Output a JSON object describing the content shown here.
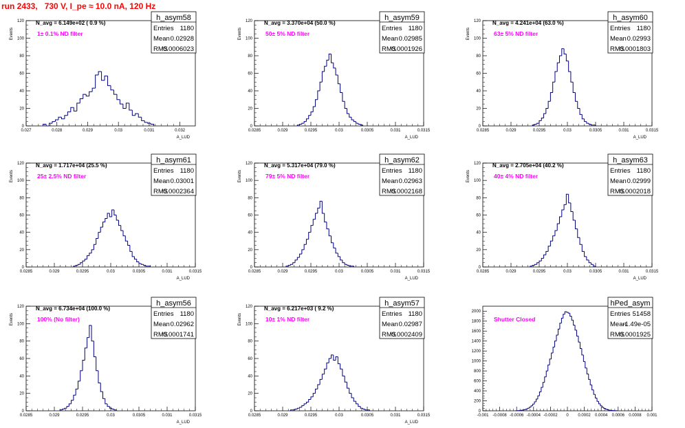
{
  "run_title": "run 2433,   730 V, I_pe ≈ 10.0 nA, 120 Hz",
  "stats_labels": {
    "entries": "Entries",
    "mean": "Mean",
    "rms": "RMS"
  },
  "colors": {
    "title": "#ff0000",
    "annotation": "#ff00ff",
    "histogram": "#000080",
    "frame": "#000000"
  },
  "chart_data": [
    {
      "type": "bar",
      "name": "h_asym58",
      "navg": "N_avg = 6.149e+02 ( 0.9 %)",
      "annotation": "1± 0.1% ND filter",
      "entries": "1180",
      "mean": "0.02928",
      "rms": "0.0006023",
      "ylabel": "Events",
      "xlabel": "A_LUD",
      "xlim": [
        0.027,
        0.0325
      ],
      "ylim": [
        0,
        120
      ],
      "xticks": [
        0.027,
        0.028,
        0.029,
        0.03,
        0.031,
        0.032
      ],
      "xtick_labels": [
        "0.027",
        "0.028",
        "0.029",
        "0.03",
        "0.031",
        "0.032"
      ],
      "yticks": [
        0,
        20,
        40,
        60,
        80,
        100,
        120
      ],
      "bin_width": 0.0001,
      "bins_x": [
        0.0276,
        0.0277,
        0.0278,
        0.0279,
        0.028,
        0.0281,
        0.0282,
        0.0283,
        0.0284,
        0.0285,
        0.0286,
        0.0287,
        0.0288,
        0.0289,
        0.029,
        0.0291,
        0.0292,
        0.0293,
        0.0294,
        0.0295,
        0.0296,
        0.0297,
        0.0298,
        0.0299,
        0.03,
        0.0301,
        0.0302,
        0.0303,
        0.0304,
        0.0305,
        0.0306,
        0.0307,
        0.0308,
        0.0309,
        0.031,
        0.0311
      ],
      "values": [
        2,
        0,
        3,
        5,
        7,
        10,
        8,
        12,
        16,
        21,
        17,
        26,
        31,
        36,
        34,
        39,
        43,
        58,
        62,
        52,
        57,
        46,
        41,
        36,
        30,
        25,
        20,
        26,
        18,
        12,
        14,
        10,
        6,
        4,
        3,
        2
      ]
    },
    {
      "type": "bar",
      "name": "h_asym59",
      "navg": "N_avg = 3.370e+04 (50.0 %)",
      "annotation": "50± 5% ND filter",
      "entries": "1180",
      "mean": "0.02985",
      "rms": "0.0001926",
      "ylabel": "Events",
      "xlabel": "A_LUD",
      "xlim": [
        0.0285,
        0.0315
      ],
      "ylim": [
        0,
        120
      ],
      "xticks": [
        0.0285,
        0.029,
        0.0295,
        0.03,
        0.0305,
        0.031,
        0.0315
      ],
      "xtick_labels": [
        "0.0285",
        "0.029",
        "0.0295",
        "0.03",
        "0.0305",
        "0.031",
        "0.0315"
      ],
      "yticks": [
        0,
        20,
        40,
        60,
        80,
        100,
        120
      ],
      "bin_width": 4e-05,
      "bins_x": [
        0.02928,
        0.02932,
        0.02936,
        0.0294,
        0.02944,
        0.02948,
        0.02952,
        0.02956,
        0.0296,
        0.02964,
        0.02968,
        0.02972,
        0.02976,
        0.0298,
        0.02984,
        0.02988,
        0.02992,
        0.02996,
        0.03,
        0.03004,
        0.03008,
        0.03012,
        0.03016,
        0.0302,
        0.03024,
        0.03028,
        0.03032,
        0.03036,
        0.0304
      ],
      "values": [
        1,
        2,
        3,
        5,
        8,
        12,
        16,
        22,
        30,
        40,
        50,
        62,
        68,
        75,
        82,
        72,
        66,
        58,
        48,
        38,
        28,
        20,
        14,
        10,
        7,
        5,
        3,
        2,
        1
      ]
    },
    {
      "type": "bar",
      "name": "h_asym60",
      "navg": "N_avg = 4.241e+04 (63.0 %)",
      "annotation": "63± 5% ND filter",
      "entries": "1180",
      "mean": "0.02993",
      "rms": "0.0001803",
      "ylabel": "Events",
      "xlabel": "A_LUD",
      "xlim": [
        0.0285,
        0.0315
      ],
      "ylim": [
        0,
        120
      ],
      "xticks": [
        0.0285,
        0.029,
        0.0295,
        0.03,
        0.0305,
        0.031,
        0.0315
      ],
      "xtick_labels": [
        "0.0285",
        "0.029",
        "0.0295",
        "0.03",
        "0.0305",
        "0.031",
        "0.0315"
      ],
      "yticks": [
        0,
        20,
        40,
        60,
        80,
        100,
        120
      ],
      "bin_width": 4e-05,
      "bins_x": [
        0.0294,
        0.02944,
        0.02948,
        0.02952,
        0.02956,
        0.0296,
        0.02964,
        0.02968,
        0.02972,
        0.02976,
        0.0298,
        0.02984,
        0.02988,
        0.02992,
        0.02996,
        0.03,
        0.03004,
        0.03008,
        0.03012,
        0.03016,
        0.0302,
        0.03024,
        0.03028,
        0.03032,
        0.03036,
        0.0304,
        0.03044,
        0.03048
      ],
      "values": [
        1,
        2,
        3,
        6,
        9,
        14,
        20,
        28,
        38,
        50,
        62,
        72,
        80,
        88,
        82,
        74,
        62,
        50,
        38,
        28,
        20,
        13,
        8,
        5,
        3,
        2,
        1,
        1
      ]
    },
    {
      "type": "bar",
      "name": "h_asym61",
      "navg": "N_avg = 1.717e+04 (25.5 %)",
      "annotation": "25± 2.5% ND filter",
      "entries": "1180",
      "mean": "0.03001",
      "rms": "0.0002364",
      "ylabel": "Events",
      "xlabel": "A_LUD",
      "xlim": [
        0.0285,
        0.0315
      ],
      "ylim": [
        0,
        120
      ],
      "xticks": [
        0.0285,
        0.029,
        0.0295,
        0.03,
        0.0305,
        0.031,
        0.0315
      ],
      "xtick_labels": [
        "0.0285",
        "0.029",
        "0.0295",
        "0.03",
        "0.0305",
        "0.031",
        "0.0315"
      ],
      "yticks": [
        0,
        20,
        40,
        60,
        80,
        100,
        120
      ],
      "bin_width": 4e-05,
      "bins_x": [
        0.02936,
        0.0294,
        0.02944,
        0.02948,
        0.02952,
        0.02956,
        0.0296,
        0.02964,
        0.02968,
        0.02972,
        0.02976,
        0.0298,
        0.02984,
        0.02988,
        0.02992,
        0.02996,
        0.03,
        0.03004,
        0.03008,
        0.03012,
        0.03016,
        0.0302,
        0.03024,
        0.03028,
        0.03032,
        0.03036,
        0.0304,
        0.03044,
        0.03048,
        0.03052,
        0.03056,
        0.0306,
        0.03064,
        0.03068
      ],
      "values": [
        1,
        2,
        3,
        5,
        7,
        9,
        13,
        16,
        20,
        26,
        33,
        40,
        46,
        52,
        56,
        62,
        58,
        66,
        60,
        54,
        48,
        42,
        36,
        30,
        25,
        18,
        12,
        9,
        6,
        4,
        3,
        2,
        1,
        1
      ]
    },
    {
      "type": "bar",
      "name": "h_asym62",
      "navg": "N_avg = 5.317e+04 (79.0 %)",
      "annotation": "79± 5% ND filter",
      "entries": "1180",
      "mean": "0.02963",
      "rms": "0.0002168",
      "ylabel": "Events",
      "xlabel": "A_LUD",
      "xlim": [
        0.0285,
        0.0315
      ],
      "ylim": [
        0,
        120
      ],
      "xticks": [
        0.0285,
        0.029,
        0.0295,
        0.03,
        0.0305,
        0.031,
        0.0315
      ],
      "xtick_labels": [
        "0.0285",
        "0.029",
        "0.0295",
        "0.03",
        "0.0305",
        "0.031",
        "0.0315"
      ],
      "yticks": [
        0,
        20,
        40,
        60,
        80,
        100,
        120
      ],
      "bin_width": 4e-05,
      "bins_x": [
        0.02908,
        0.02912,
        0.02916,
        0.0292,
        0.02924,
        0.02928,
        0.02932,
        0.02936,
        0.0294,
        0.02944,
        0.02948,
        0.02952,
        0.02956,
        0.0296,
        0.02964,
        0.02968,
        0.02972,
        0.02976,
        0.0298,
        0.02984,
        0.02988,
        0.02992,
        0.02996,
        0.03,
        0.03004,
        0.03008,
        0.03012,
        0.03016,
        0.0302,
        0.03024
      ],
      "values": [
        1,
        2,
        3,
        5,
        8,
        11,
        15,
        20,
        26,
        32,
        40,
        48,
        55,
        62,
        68,
        76,
        62,
        52,
        44,
        36,
        28,
        22,
        16,
        12,
        8,
        5,
        3,
        2,
        1,
        1
      ]
    },
    {
      "type": "bar",
      "name": "h_asym63",
      "navg": "N_avg = 2.705e+04 (40.2 %)",
      "annotation": "40± 4% ND filter",
      "entries": "1180",
      "mean": "0.02999",
      "rms": "0.0002018",
      "ylabel": "Events",
      "xlabel": "A_LUD",
      "xlim": [
        0.0285,
        0.0315
      ],
      "ylim": [
        0,
        120
      ],
      "xticks": [
        0.0285,
        0.029,
        0.0295,
        0.03,
        0.0305,
        0.031,
        0.0315
      ],
      "xtick_labels": [
        "0.0285",
        "0.029",
        "0.0295",
        "0.03",
        "0.0305",
        "0.031",
        "0.0315"
      ],
      "yticks": [
        0,
        20,
        40,
        60,
        80,
        100,
        120
      ],
      "bin_width": 4e-05,
      "bins_x": [
        0.02936,
        0.0294,
        0.02944,
        0.02948,
        0.02952,
        0.02956,
        0.0296,
        0.02964,
        0.02968,
        0.02972,
        0.02976,
        0.0298,
        0.02984,
        0.02988,
        0.02992,
        0.02996,
        0.03,
        0.03004,
        0.03008,
        0.03012,
        0.03016,
        0.0302,
        0.03024,
        0.03028,
        0.03032,
        0.03036,
        0.0304,
        0.03044,
        0.03048
      ],
      "values": [
        1,
        2,
        3,
        5,
        7,
        10,
        14,
        18,
        24,
        30,
        36,
        42,
        50,
        58,
        66,
        72,
        84,
        74,
        64,
        54,
        44,
        34,
        26,
        18,
        12,
        8,
        5,
        3,
        1
      ]
    },
    {
      "type": "bar",
      "name": "h_asym56",
      "navg": "N_avg = 6.734e+04 (100.0 %)",
      "annotation": "100% (No filter)",
      "entries": "1180",
      "mean": "0.02962",
      "rms": "0.0001741",
      "ylabel": "Events",
      "xlabel": "A_LUD",
      "xlim": [
        0.0285,
        0.0315
      ],
      "ylim": [
        0,
        120
      ],
      "xticks": [
        0.0285,
        0.029,
        0.0295,
        0.03,
        0.0305,
        0.031,
        0.0315
      ],
      "xtick_labels": [
        "0.0285",
        "0.029",
        "0.0295",
        "0.03",
        "0.0305",
        "0.031",
        "0.0315"
      ],
      "yticks": [
        0,
        20,
        40,
        60,
        80,
        100,
        120
      ],
      "bin_width": 4e-05,
      "bins_x": [
        0.02912,
        0.02916,
        0.0292,
        0.02924,
        0.02928,
        0.02932,
        0.02936,
        0.0294,
        0.02944,
        0.02948,
        0.02952,
        0.02956,
        0.0296,
        0.02964,
        0.02968,
        0.02972,
        0.02976,
        0.0298,
        0.02984,
        0.02988,
        0.02992,
        0.02996,
        0.03,
        0.03004,
        0.03008
      ],
      "values": [
        1,
        2,
        3,
        5,
        8,
        12,
        18,
        25,
        34,
        46,
        58,
        72,
        84,
        98,
        80,
        62,
        46,
        32,
        22,
        14,
        8,
        5,
        3,
        2,
        1
      ]
    },
    {
      "type": "bar",
      "name": "h_asym57",
      "navg": "N_avg = 6.217e+03 ( 9.2 %)",
      "annotation": "10± 1% ND filter",
      "entries": "1180",
      "mean": "0.02987",
      "rms": "0.0002409",
      "ylabel": "Events",
      "xlabel": "A_LUD",
      "xlim": [
        0.0285,
        0.0315
      ],
      "ylim": [
        0,
        120
      ],
      "xticks": [
        0.0285,
        0.029,
        0.0295,
        0.03,
        0.0305,
        0.031,
        0.0315
      ],
      "xtick_labels": [
        "0.0285",
        "0.029",
        "0.0295",
        "0.03",
        "0.0305",
        "0.031",
        "0.0315"
      ],
      "yticks": [
        0,
        20,
        40,
        60,
        80,
        100,
        120
      ],
      "bin_width": 4e-05,
      "bins_x": [
        0.02916,
        0.0292,
        0.02924,
        0.02928,
        0.02932,
        0.02936,
        0.0294,
        0.02944,
        0.02948,
        0.02952,
        0.02956,
        0.0296,
        0.02964,
        0.02968,
        0.02972,
        0.02976,
        0.0298,
        0.02984,
        0.02988,
        0.02992,
        0.02996,
        0.03,
        0.03004,
        0.03008,
        0.03012,
        0.03016,
        0.0302,
        0.03024,
        0.03028,
        0.03032,
        0.03036,
        0.0304,
        0.03044,
        0.03048,
        0.03052
      ],
      "values": [
        1,
        1,
        2,
        3,
        4,
        6,
        8,
        10,
        13,
        16,
        20,
        25,
        30,
        36,
        42,
        48,
        55,
        60,
        64,
        58,
        62,
        54,
        48,
        40,
        33,
        26,
        20,
        15,
        11,
        8,
        5,
        3,
        2,
        1,
        1
      ]
    },
    {
      "type": "bar",
      "name": "hPed_asym",
      "navg": "",
      "annotation": "Shutter Closed",
      "entries": "51458",
      "mean": "-1.49e-05",
      "rms": "0.0001925",
      "ylabel": "",
      "xlabel": "",
      "xlim": [
        -0.001,
        0.001
      ],
      "ylim": [
        0,
        2100
      ],
      "xticks": [
        -0.001,
        -0.0008,
        -0.0006,
        -0.0004,
        -0.0002,
        0,
        0.0002,
        0.0004,
        0.0006,
        0.0008,
        0.001
      ],
      "xtick_labels": [
        "-0.001",
        "-0.0008",
        "-0.0006",
        "-0.0004",
        "-0.0002",
        "0",
        "0.0002",
        "0.0004",
        "0.0006",
        "0.0008",
        "0.001"
      ],
      "yticks": [
        0,
        200,
        400,
        600,
        800,
        1000,
        1200,
        1400,
        1600,
        1800,
        2000
      ],
      "bin_width": 2e-05,
      "bins_x": [
        -0.0006,
        -0.00058,
        -0.00056,
        -0.00054,
        -0.00052,
        -0.0005,
        -0.00048,
        -0.00046,
        -0.00044,
        -0.00042,
        -0.0004,
        -0.00038,
        -0.00036,
        -0.00034,
        -0.00032,
        -0.0003,
        -0.00028,
        -0.00026,
        -0.00024,
        -0.00022,
        -0.0002,
        -0.00018,
        -0.00016,
        -0.00014,
        -0.00012,
        -0.0001,
        -8e-05,
        -6e-05,
        -4e-05,
        -2e-05,
        0,
        2e-05,
        4e-05,
        6e-05,
        8e-05,
        0.0001,
        0.00012,
        0.00014,
        0.00016,
        0.00018,
        0.0002,
        0.00022,
        0.00024,
        0.00026,
        0.00028,
        0.0003,
        0.00032,
        0.00034,
        0.00036,
        0.00038,
        0.0004,
        0.00042,
        0.00044,
        0.00046,
        0.00048,
        0.0005,
        0.00052,
        0.00054,
        0.00056,
        0.00058
      ],
      "values": [
        2,
        4,
        6,
        10,
        16,
        24,
        36,
        52,
        72,
        100,
        135,
        180,
        235,
        300,
        380,
        470,
        570,
        680,
        800,
        920,
        1040,
        1160,
        1280,
        1400,
        1520,
        1640,
        1760,
        1860,
        1940,
        1990,
        1980,
        1960,
        1900,
        1820,
        1720,
        1620,
        1500,
        1380,
        1250,
        1120,
        990,
        860,
        740,
        630,
        520,
        420,
        330,
        255,
        190,
        140,
        100,
        70,
        48,
        32,
        20,
        12,
        8,
        5,
        3,
        2
      ]
    }
  ]
}
